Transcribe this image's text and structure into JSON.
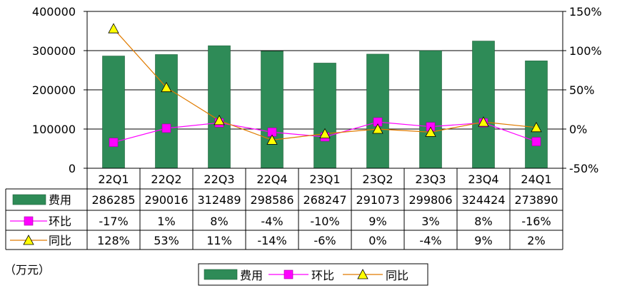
{
  "chart_data": {
    "type": "bar",
    "categories": [
      "22Q1",
      "22Q2",
      "22Q3",
      "22Q4",
      "23Q1",
      "23Q2",
      "23Q3",
      "23Q4",
      "24Q1"
    ],
    "series": [
      {
        "name": "费用",
        "type": "bar",
        "axis": "left",
        "color": "#2e8b57",
        "values": [
          286285,
          290016,
          312489,
          298586,
          268247,
          291073,
          299806,
          324424,
          273890
        ],
        "table_labels": [
          "286285",
          "290016",
          "312489",
          "298586",
          "268247",
          "291073",
          "299806",
          "324424",
          "273890"
        ]
      },
      {
        "name": "环比",
        "type": "line",
        "axis": "right",
        "color": "#ff00ff",
        "marker": "square",
        "values": [
          -17,
          1,
          8,
          -4,
          -10,
          9,
          3,
          8,
          -16
        ],
        "table_labels": [
          "-17%",
          "1%",
          "8%",
          "-4%",
          "-10%",
          "9%",
          "3%",
          "8%",
          "-16%"
        ]
      },
      {
        "name": "同比",
        "type": "line",
        "axis": "right",
        "color": "#e07b00",
        "marker": "triangle",
        "values": [
          128,
          53,
          11,
          -14,
          -6,
          0,
          -4,
          9,
          2
        ],
        "table_labels": [
          "128%",
          "53%",
          "11%",
          "-14%",
          "-6%",
          "0%",
          "-4%",
          "9%",
          "2%"
        ]
      }
    ],
    "ylim_left": [
      0,
      400000
    ],
    "yticks_left": [
      "400000",
      "300000",
      "200000",
      "100000",
      "0"
    ],
    "ylim_right": [
      -50,
      150
    ],
    "yticks_right": [
      "150%",
      "100%",
      "50%",
      "0%",
      "-50%"
    ],
    "unit_label": "（万元）",
    "legend": [
      "费用",
      "环比",
      "同比"
    ],
    "legend_position": "bottom"
  }
}
